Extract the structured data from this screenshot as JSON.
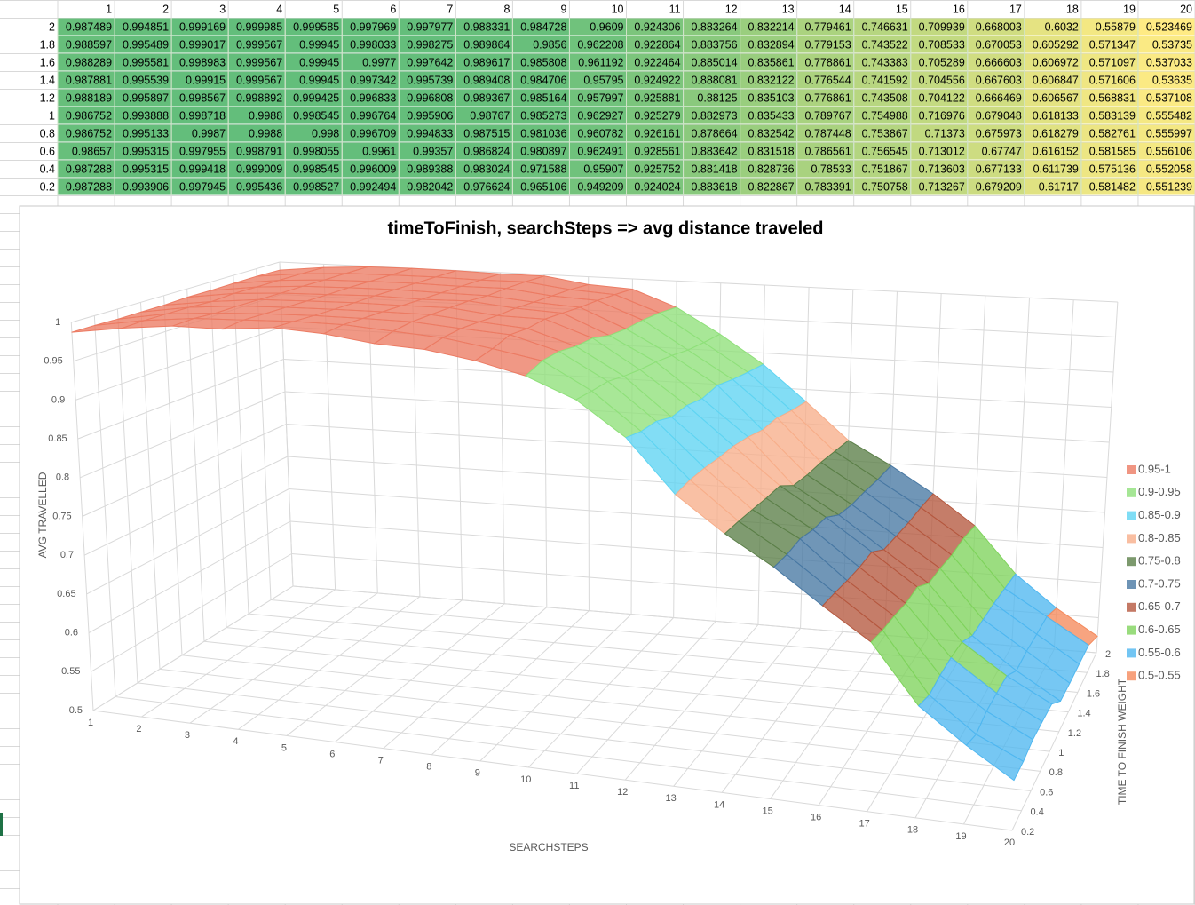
{
  "table": {
    "columns": [
      1,
      2,
      3,
      4,
      5,
      6,
      7,
      8,
      9,
      10,
      11,
      12,
      13,
      14,
      15,
      16,
      17,
      18,
      19,
      20
    ],
    "color_scale": {
      "low": "#ffeb84",
      "high": "#63be7b"
    },
    "rows": [
      {
        "label": 2,
        "values": [
          0.987489,
          0.994851,
          0.999169,
          0.999985,
          0.999585,
          0.997969,
          0.997977,
          0.988331,
          0.984728,
          0.9609,
          0.924306,
          0.883264,
          0.832214,
          0.779461,
          0.746631,
          0.709939,
          0.668003,
          0.6032,
          0.55879,
          0.523469
        ]
      },
      {
        "label": 1.8,
        "values": [
          0.988597,
          0.995489,
          0.999017,
          0.999567,
          0.99945,
          0.998033,
          0.998275,
          0.989864,
          0.9856,
          0.962208,
          0.922864,
          0.883756,
          0.832894,
          0.779153,
          0.743522,
          0.708533,
          0.670053,
          0.605292,
          0.571347,
          0.53735
        ]
      },
      {
        "label": 1.6,
        "values": [
          0.988289,
          0.995581,
          0.998983,
          0.999567,
          0.99945,
          0.9977,
          0.997642,
          0.989617,
          0.985808,
          0.961192,
          0.922464,
          0.885014,
          0.835861,
          0.778861,
          0.743383,
          0.705289,
          0.666603,
          0.606972,
          0.571097,
          0.537033
        ]
      },
      {
        "label": 1.4,
        "values": [
          0.987881,
          0.995539,
          0.99915,
          0.999567,
          0.99945,
          0.997342,
          0.995739,
          0.989408,
          0.984706,
          0.95795,
          0.924922,
          0.888081,
          0.832122,
          0.776544,
          0.741592,
          0.704556,
          0.667603,
          0.606847,
          0.571606,
          0.53635
        ]
      },
      {
        "label": 1.2,
        "values": [
          0.988189,
          0.995897,
          0.998567,
          0.998892,
          0.999425,
          0.996833,
          0.996808,
          0.989367,
          0.985164,
          0.957997,
          0.925881,
          0.88125,
          0.835103,
          0.776861,
          0.743508,
          0.704122,
          0.666469,
          0.606567,
          0.568831,
          0.537108
        ]
      },
      {
        "label": 1,
        "values": [
          0.986752,
          0.993888,
          0.998718,
          0.9988,
          0.998545,
          0.996764,
          0.995906,
          0.98767,
          0.985273,
          0.962927,
          0.925279,
          0.882973,
          0.835433,
          0.789767,
          0.754988,
          0.716976,
          0.679048,
          0.618133,
          0.583139,
          0.555482
        ]
      },
      {
        "label": 0.8,
        "values": [
          0.986752,
          0.995133,
          0.9987,
          0.9988,
          0.998,
          0.996709,
          0.994833,
          0.987515,
          0.981036,
          0.960782,
          0.926161,
          0.878664,
          0.832542,
          0.787448,
          0.753867,
          0.71373,
          0.675973,
          0.618279,
          0.582761,
          0.555997
        ]
      },
      {
        "label": 0.6,
        "values": [
          0.98657,
          0.995315,
          0.997955,
          0.998791,
          0.998055,
          0.9961,
          0.99357,
          0.986824,
          0.980897,
          0.962491,
          0.928561,
          0.883642,
          0.831518,
          0.786561,
          0.756545,
          0.713012,
          0.67747,
          0.616152,
          0.581585,
          0.556106
        ]
      },
      {
        "label": 0.4,
        "values": [
          0.987288,
          0.995315,
          0.999418,
          0.999009,
          0.998545,
          0.996009,
          0.989388,
          0.983024,
          0.971588,
          0.95907,
          0.925752,
          0.881418,
          0.828736,
          0.78533,
          0.751867,
          0.713603,
          0.677133,
          0.611739,
          0.575136,
          0.552058
        ]
      },
      {
        "label": 0.2,
        "values": [
          0.987288,
          0.993906,
          0.997945,
          0.995436,
          0.998527,
          0.992494,
          0.982042,
          0.976624,
          0.965106,
          0.949209,
          0.924024,
          0.883618,
          0.822867,
          0.783391,
          0.750758,
          0.713267,
          0.679209,
          0.61717,
          0.581482,
          0.551239
        ]
      }
    ]
  },
  "chart_data": {
    "type": "surface",
    "title": "timeToFinish, searchSteps => avg distance traveled",
    "x_label": "SEARCHSTEPS",
    "y_label": "TIME TO FINISH WEIGHT",
    "z_label": "AVG TRAVELLED",
    "zlim": [
      0.5,
      1
    ],
    "zticks": [
      0.5,
      0.55,
      0.6,
      0.65,
      0.7,
      0.75,
      0.8,
      0.85,
      0.9,
      0.95,
      1
    ],
    "grid": true,
    "legend": "right",
    "series": [
      {
        "name": "0.95-1",
        "color": "#ec7b63"
      },
      {
        "name": "0.9-0.95",
        "color": "#8fe07a"
      },
      {
        "name": "0.85-0.9",
        "color": "#5fd4f2"
      },
      {
        "name": "0.8-0.85",
        "color": "#f7ae8a"
      },
      {
        "name": "0.75-0.8",
        "color": "#5b7f48"
      },
      {
        "name": "0.7-0.75",
        "color": "#4878a3"
      },
      {
        "name": "0.65-0.7",
        "color": "#b5583f"
      },
      {
        "name": "0.6-0.65",
        "color": "#7fd35c"
      },
      {
        "name": "0.55-0.6",
        "color": "#4fb7f0"
      },
      {
        "name": "0.5-0.55",
        "color": "#f58a5c"
      }
    ]
  }
}
